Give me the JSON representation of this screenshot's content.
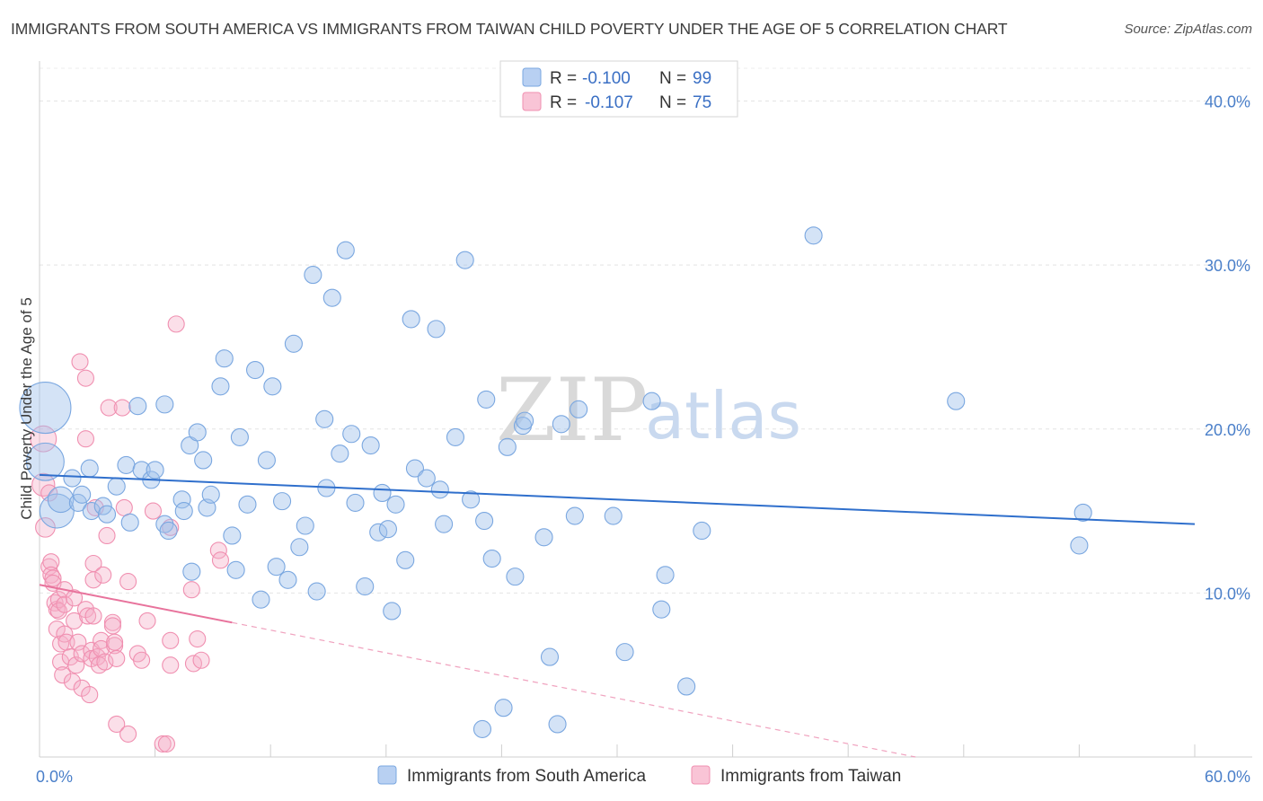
{
  "header": {
    "title": "IMMIGRANTS FROM SOUTH AMERICA VS IMMIGRANTS FROM TAIWAN CHILD POVERTY UNDER THE AGE OF 5 CORRELATION CHART",
    "source": "Source: ZipAtlas.com"
  },
  "watermark": {
    "zip": "ZIP",
    "atlas": "atlas"
  },
  "legend": {
    "rows": [
      {
        "r_label": "R = ",
        "r_value": "-0.100",
        "n_label": "N = ",
        "n_value": "99"
      },
      {
        "r_label": "R = ",
        "r_value": "-0.107",
        "n_label": "N = ",
        "n_value": "75"
      }
    ]
  },
  "chart_data": {
    "type": "scatter",
    "title": "IMMIGRANTS FROM SOUTH AMERICA VS IMMIGRANTS FROM TAIWAN CHILD POVERTY UNDER THE AGE OF 5 CORRELATION CHART",
    "xlabel": "",
    "ylabel": "Child Poverty Under the Age of 5",
    "xlim": [
      0,
      60
    ],
    "ylim": [
      0,
      42
    ],
    "x_tick_labels": [
      "0.0%",
      "60.0%"
    ],
    "y_ticks": [
      10,
      20,
      30,
      40
    ],
    "y_tick_labels": [
      "10.0%",
      "20.0%",
      "30.0%",
      "40.0%"
    ],
    "grid": true,
    "colors": {
      "south_america": "#7aa7e0",
      "taiwan": "#f08fb0",
      "south_america_line": "#2f6fcc",
      "taiwan_line": "#e8739c"
    },
    "series": [
      {
        "name": "Immigrants from South America",
        "r": -0.1,
        "n": 99,
        "trend": {
          "x0": 0,
          "y0": 17.2,
          "x1": 60,
          "y1": 14.2
        },
        "points": [
          [
            0.3,
            21.3,
            3
          ],
          [
            0.3,
            18.0,
            2.2
          ],
          [
            0.9,
            15.0,
            2
          ],
          [
            1.1,
            15.7,
            1.5
          ],
          [
            1.7,
            17.0,
            1
          ],
          [
            2,
            15.5,
            1
          ],
          [
            2.2,
            16.0,
            1
          ],
          [
            2.6,
            17.6,
            1
          ],
          [
            2.7,
            15.0,
            1
          ],
          [
            3.3,
            15.3,
            1
          ],
          [
            3.5,
            14.8,
            1
          ],
          [
            4,
            16.5,
            1
          ],
          [
            4.5,
            17.8,
            1
          ],
          [
            4.7,
            14.3,
            1
          ],
          [
            5.1,
            21.4,
            1
          ],
          [
            5.3,
            17.5,
            1
          ],
          [
            5.8,
            16.9,
            1
          ],
          [
            6,
            17.5,
            1
          ],
          [
            6.5,
            21.5,
            1
          ],
          [
            6.5,
            14.2,
            1
          ],
          [
            6.7,
            13.8,
            1
          ],
          [
            7.4,
            15.7,
            1
          ],
          [
            7.5,
            15.0,
            1
          ],
          [
            7.8,
            19.0,
            1
          ],
          [
            7.9,
            11.3,
            1
          ],
          [
            8.2,
            19.8,
            1
          ],
          [
            8.5,
            18.1,
            1
          ],
          [
            8.7,
            15.2,
            1
          ],
          [
            8.9,
            16.0,
            1
          ],
          [
            9.4,
            22.6,
            1
          ],
          [
            9.6,
            24.3,
            1
          ],
          [
            10.0,
            13.5,
            1
          ],
          [
            10.2,
            11.4,
            1
          ],
          [
            10.4,
            19.5,
            1
          ],
          [
            10.8,
            15.4,
            1
          ],
          [
            11.2,
            23.6,
            1
          ],
          [
            11.5,
            9.6,
            1
          ],
          [
            11.8,
            18.1,
            1
          ],
          [
            12.1,
            22.6,
            1
          ],
          [
            12.3,
            11.6,
            1
          ],
          [
            12.6,
            15.6,
            1
          ],
          [
            12.9,
            10.8,
            1
          ],
          [
            13.2,
            25.2,
            1
          ],
          [
            13.5,
            12.8,
            1
          ],
          [
            13.8,
            14.1,
            1
          ],
          [
            14.2,
            29.4,
            1
          ],
          [
            14.4,
            10.1,
            1
          ],
          [
            14.8,
            20.6,
            1
          ],
          [
            14.9,
            16.4,
            1
          ],
          [
            15.2,
            28.0,
            1
          ],
          [
            15.6,
            18.5,
            1
          ],
          [
            15.9,
            30.9,
            1
          ],
          [
            16.2,
            19.7,
            1
          ],
          [
            16.4,
            15.5,
            1
          ],
          [
            16.9,
            10.4,
            1
          ],
          [
            17.2,
            19.0,
            1
          ],
          [
            17.6,
            13.7,
            1
          ],
          [
            17.8,
            16.1,
            1
          ],
          [
            18.1,
            13.9,
            1
          ],
          [
            18.3,
            8.9,
            1
          ],
          [
            18.5,
            15.4,
            1
          ],
          [
            19.0,
            12.0,
            1
          ],
          [
            19.3,
            26.7,
            1
          ],
          [
            19.5,
            17.6,
            1
          ],
          [
            20.1,
            17.0,
            1
          ],
          [
            20.6,
            26.1,
            1
          ],
          [
            20.8,
            16.3,
            1
          ],
          [
            21.0,
            14.2,
            1
          ],
          [
            21.6,
            19.5,
            1
          ],
          [
            22.1,
            30.3,
            1
          ],
          [
            22.4,
            15.7,
            1
          ],
          [
            23.1,
            14.4,
            1
          ],
          [
            23.2,
            21.8,
            1
          ],
          [
            23.5,
            12.1,
            1
          ],
          [
            23.0,
            1.7,
            1
          ],
          [
            24.1,
            3.0,
            1
          ],
          [
            24.3,
            18.9,
            1
          ],
          [
            24.7,
            11.0,
            1
          ],
          [
            25.1,
            20.2,
            1
          ],
          [
            25.2,
            20.5,
            1
          ],
          [
            26.2,
            13.4,
            1
          ],
          [
            26.5,
            6.1,
            1
          ],
          [
            26.9,
            2.0,
            1
          ],
          [
            27.1,
            20.3,
            1
          ],
          [
            27.8,
            14.7,
            1
          ],
          [
            28.0,
            21.2,
            1
          ],
          [
            29.8,
            14.7,
            1
          ],
          [
            30.4,
            6.4,
            1
          ],
          [
            31.8,
            21.7,
            1
          ],
          [
            32.3,
            9.0,
            1
          ],
          [
            32.5,
            11.1,
            1
          ],
          [
            33.6,
            4.3,
            1
          ],
          [
            34.4,
            13.8,
            1
          ],
          [
            40.2,
            31.8,
            1
          ],
          [
            47.6,
            21.7,
            1
          ],
          [
            54.0,
            12.9,
            1
          ],
          [
            54.2,
            14.9,
            1
          ]
        ]
      },
      {
        "name": "Immigrants from Taiwan",
        "r": -0.107,
        "n": 75,
        "trend": {
          "x0": 0,
          "y0": 10.5,
          "x1": 10,
          "y1": 8.2
        },
        "trend_extension": {
          "x0": 10,
          "y0": 8.2,
          "x1": 45.5,
          "y1": 0
        },
        "points": [
          [
            0.2,
            19.4,
            1.6
          ],
          [
            0.2,
            16.6,
            1.4
          ],
          [
            0.3,
            14.0,
            1.2
          ],
          [
            0.5,
            16.1,
            1
          ],
          [
            0.5,
            11.6,
            1
          ],
          [
            0.6,
            11.9,
            1
          ],
          [
            0.6,
            11.1,
            1
          ],
          [
            0.7,
            10.9,
            1
          ],
          [
            0.7,
            10.6,
            1
          ],
          [
            0.8,
            9.4,
            1
          ],
          [
            0.9,
            9.0,
            1
          ],
          [
            0.9,
            7.8,
            1
          ],
          [
            1.0,
            9.6,
            1
          ],
          [
            1.0,
            8.9,
            1
          ],
          [
            1.1,
            6.9,
            1
          ],
          [
            1.1,
            5.8,
            1
          ],
          [
            1.2,
            5.0,
            1
          ],
          [
            1.3,
            10.2,
            1
          ],
          [
            1.3,
            9.3,
            1
          ],
          [
            1.3,
            7.5,
            1
          ],
          [
            1.4,
            7.0,
            1
          ],
          [
            1.6,
            6.1,
            1
          ],
          [
            1.7,
            4.6,
            1
          ],
          [
            1.8,
            8.3,
            1
          ],
          [
            1.8,
            9.7,
            1
          ],
          [
            1.9,
            5.6,
            1
          ],
          [
            2.0,
            7.0,
            1
          ],
          [
            2.1,
            24.1,
            1
          ],
          [
            2.2,
            6.3,
            1
          ],
          [
            2.2,
            4.2,
            1
          ],
          [
            2.4,
            23.1,
            1
          ],
          [
            2.4,
            19.4,
            1
          ],
          [
            2.4,
            9.0,
            1
          ],
          [
            2.5,
            8.6,
            1
          ],
          [
            2.6,
            3.8,
            1
          ],
          [
            2.7,
            6.5,
            1
          ],
          [
            2.7,
            6.0,
            1
          ],
          [
            2.8,
            8.6,
            1
          ],
          [
            2.8,
            10.8,
            1
          ],
          [
            2.8,
            11.8,
            1
          ],
          [
            2.9,
            15.2,
            1
          ],
          [
            3.0,
            6.1,
            1
          ],
          [
            3.1,
            5.6,
            1
          ],
          [
            3.2,
            7.1,
            1
          ],
          [
            3.2,
            6.6,
            1
          ],
          [
            3.3,
            11.1,
            1
          ],
          [
            3.4,
            5.8,
            1
          ],
          [
            3.5,
            13.5,
            1
          ],
          [
            3.6,
            21.3,
            1
          ],
          [
            3.8,
            8.2,
            1
          ],
          [
            3.8,
            8.0,
            1
          ],
          [
            3.9,
            6.8,
            1
          ],
          [
            3.9,
            7.0,
            1
          ],
          [
            4.0,
            2.0,
            1
          ],
          [
            4.0,
            6.0,
            1
          ],
          [
            4.3,
            21.3,
            1
          ],
          [
            4.4,
            15.2,
            1
          ],
          [
            4.6,
            10.7,
            1
          ],
          [
            4.6,
            1.4,
            1
          ],
          [
            5.1,
            6.3,
            1
          ],
          [
            5.3,
            5.9,
            1
          ],
          [
            5.6,
            8.3,
            1
          ],
          [
            5.9,
            15.0,
            1
          ],
          [
            6.4,
            0.8,
            1
          ],
          [
            6.6,
            0.8,
            1
          ],
          [
            6.8,
            7.1,
            1
          ],
          [
            6.8,
            5.6,
            1
          ],
          [
            6.8,
            14.0,
            1
          ],
          [
            7.1,
            26.4,
            1
          ],
          [
            7.9,
            10.2,
            1
          ],
          [
            8.0,
            5.7,
            1
          ],
          [
            8.2,
            7.2,
            1
          ],
          [
            8.4,
            5.9,
            1
          ],
          [
            9.3,
            12.6,
            1
          ],
          [
            9.4,
            12.0,
            1
          ]
        ]
      }
    ]
  },
  "bottom_legend": {
    "items": [
      {
        "label": "Immigrants from South America"
      },
      {
        "label": "Immigrants from Taiwan"
      }
    ]
  }
}
